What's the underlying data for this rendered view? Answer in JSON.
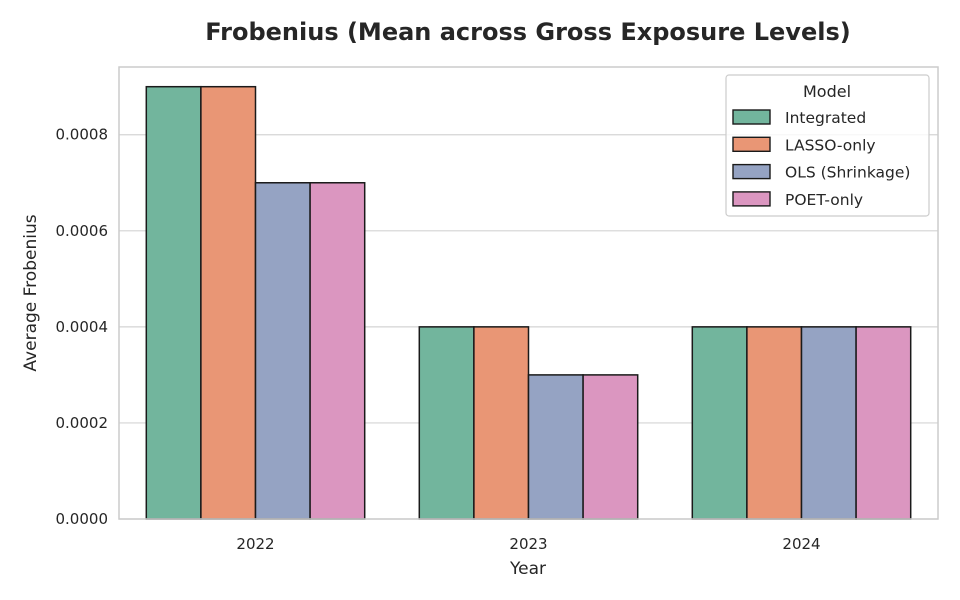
{
  "chart_data": {
    "type": "bar",
    "title": "Frobenius (Mean across Gross Exposure Levels)",
    "xlabel": "Year",
    "ylabel": "Average Frobenius",
    "categories": [
      "2022",
      "2023",
      "2024"
    ],
    "ylim": [
      0,
      0.0009
    ],
    "yticks": [
      "0.0000",
      "0.0002",
      "0.0004",
      "0.0006",
      "0.0008"
    ],
    "ytick_values": [
      0,
      0.0002,
      0.0004,
      0.0006,
      0.0008
    ],
    "grid": true,
    "legend": {
      "title": "Model",
      "position": "top-right"
    },
    "series": [
      {
        "name": "Integrated",
        "color": "#72b59d",
        "values": [
          0.0009,
          0.0004,
          0.0004
        ]
      },
      {
        "name": "LASSO-only",
        "color": "#e99675",
        "values": [
          0.0009,
          0.0004,
          0.0004
        ]
      },
      {
        "name": "OLS (Shrinkage)",
        "color": "#95a3c3",
        "values": [
          0.0007,
          0.0003,
          0.0004
        ]
      },
      {
        "name": "POET-only",
        "color": "#db96c0",
        "values": [
          0.0007,
          0.0003,
          0.0004
        ]
      }
    ]
  }
}
